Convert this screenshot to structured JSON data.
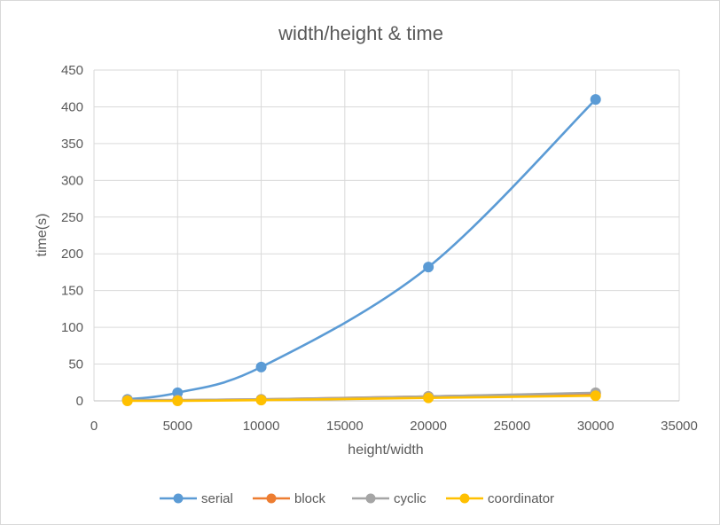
{
  "chart_data": {
    "type": "line",
    "title": "width/height & time",
    "xlabel": "height/width",
    "ylabel": "time(s)",
    "xlim": [
      0,
      35000
    ],
    "ylim": [
      0,
      450
    ],
    "x_ticks": [
      "0",
      "5000",
      "10000",
      "15000",
      "20000",
      "25000",
      "30000",
      "35000"
    ],
    "y_ticks": [
      "0",
      "50",
      "100",
      "150",
      "200",
      "250",
      "300",
      "350",
      "400",
      "450"
    ],
    "grid": true,
    "smoothed": true,
    "legend_position": "bottom",
    "x": [
      2000,
      5000,
      10000,
      20000,
      30000
    ],
    "series": [
      {
        "name": "serial",
        "color": "#5b9bd5",
        "values": [
          2,
          11,
          46,
          182,
          410
        ]
      },
      {
        "name": "block",
        "color": "#ed7d31",
        "values": [
          1,
          1,
          2,
          6,
          10
        ]
      },
      {
        "name": "cyclic",
        "color": "#a5a5a5",
        "values": [
          1,
          1,
          2,
          6,
          11
        ]
      },
      {
        "name": "coordinator",
        "color": "#ffc000",
        "values": [
          0,
          0,
          1,
          4,
          7
        ]
      }
    ]
  }
}
